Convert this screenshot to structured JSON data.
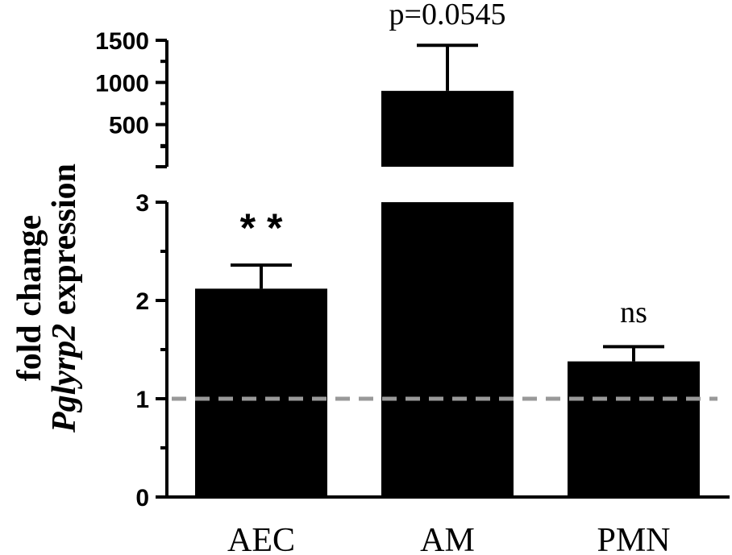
{
  "chart_data": {
    "type": "bar",
    "categories": [
      "AEC",
      "AM",
      "PMN"
    ],
    "values": [
      2.12,
      900,
      1.38
    ],
    "errors": [
      0.24,
      540,
      0.15
    ],
    "annotations": [
      "**",
      "p=0.0545",
      "ns"
    ],
    "ylabel_line1": "fold change",
    "ylabel_line2_italic": "Pglyrp2",
    "ylabel_line2_rest": " expression",
    "axis_lower": {
      "min": 0,
      "max": 3,
      "ticks": [
        "0",
        "1",
        "2",
        "3"
      ]
    },
    "axis_upper": {
      "min": 0,
      "max": 1500,
      "ticks": [
        "500",
        "1000",
        "1500"
      ]
    },
    "reference_line": 1,
    "reference_color": "#999999",
    "bar_color": "#000000",
    "grid": false,
    "broken_axis": true
  }
}
